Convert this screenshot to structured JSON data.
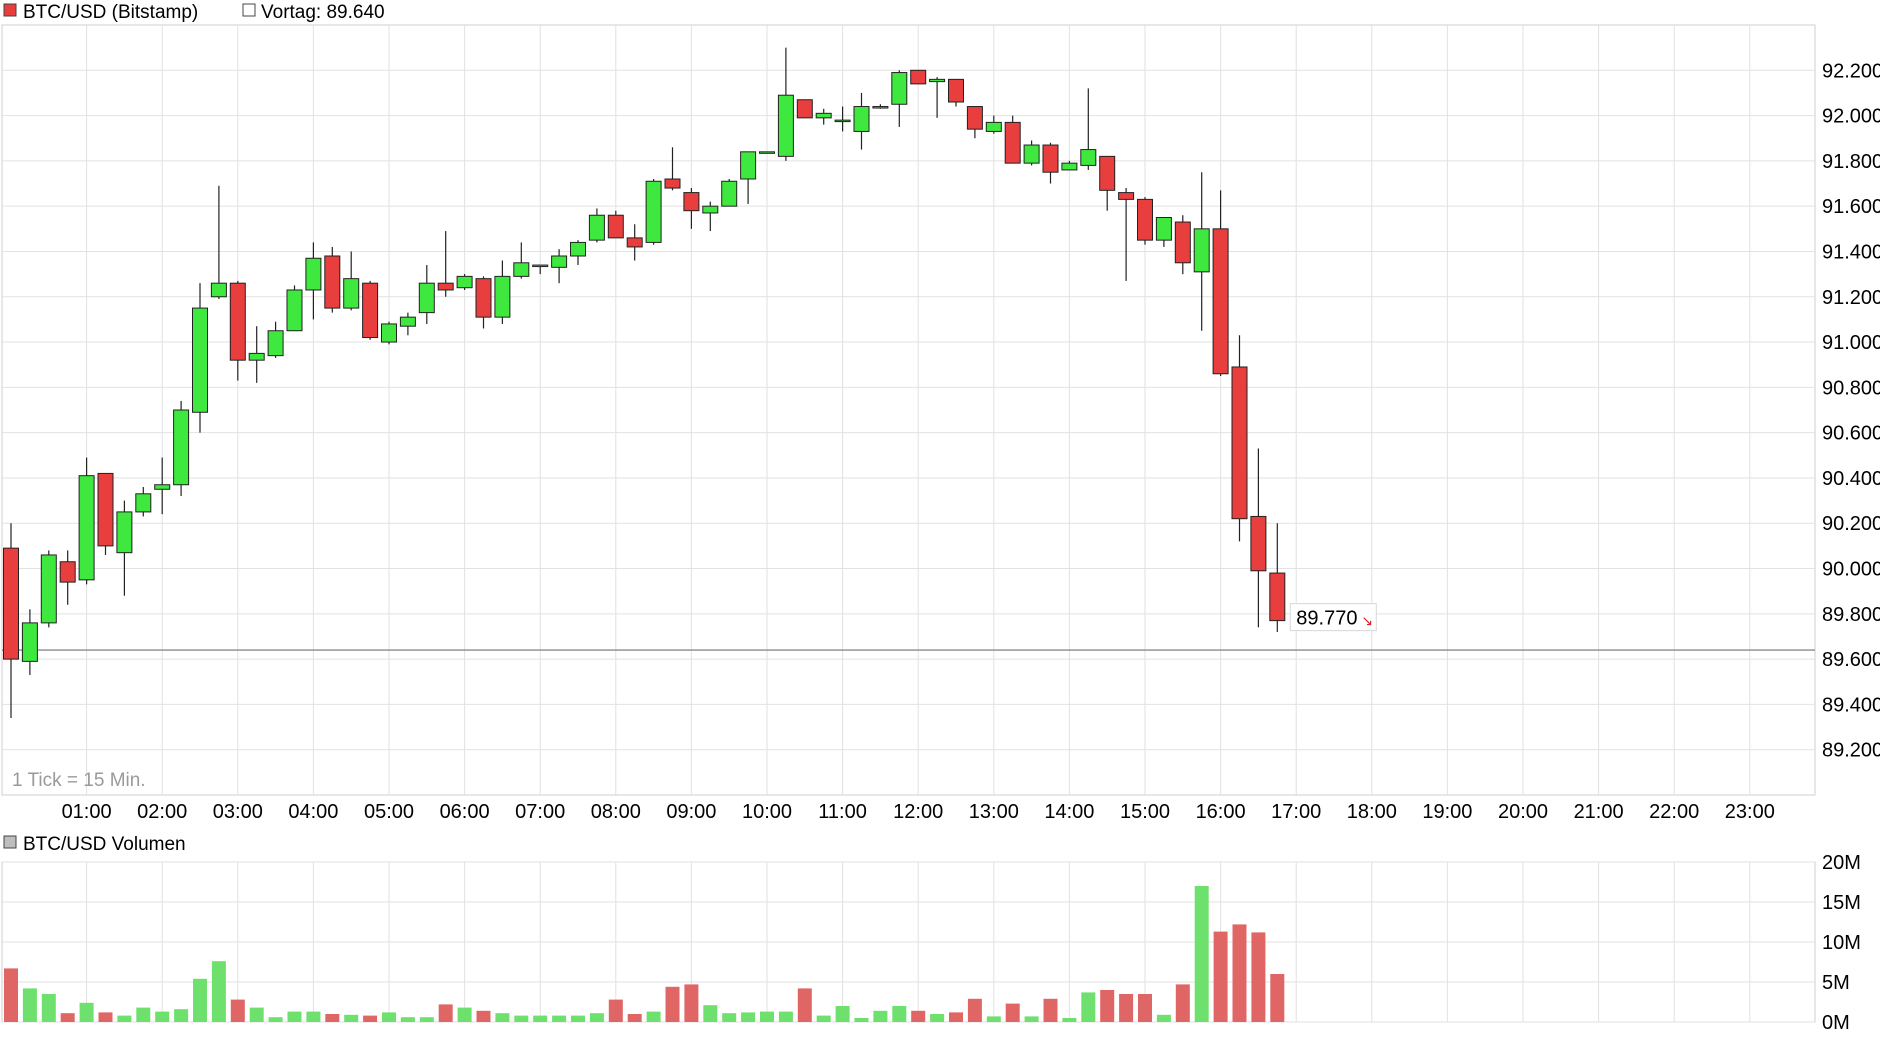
{
  "legend": {
    "instrument_label": "BTC/USD (Bitstamp)",
    "prev_close_label": "Vortag: 89.640",
    "volume_label": "BTC/USD Volumen"
  },
  "tick_note": "1 Tick = 15 Min.",
  "last_price_label": "89.770",
  "colors": {
    "up": "#3ee83e",
    "down": "#e83e3e",
    "vol_up": "#6ee06e",
    "vol_down": "#e06666",
    "grid": "#e2e2e2",
    "prev_close_line": "#8a8a8a"
  },
  "chart_data": [
    {
      "type": "candlestick",
      "title": "BTC/USD (Bitstamp)",
      "interval": "15 Min.",
      "prev_close": 89640,
      "last_price": 89770,
      "ylim": [
        89000,
        92400
      ],
      "y_ticks": [
        92200,
        92000,
        91800,
        91600,
        91400,
        91200,
        91000,
        90800,
        90600,
        90400,
        90200,
        90000,
        89800,
        89600,
        89400,
        89200
      ],
      "y_tick_labels": [
        "92.200",
        "92.000",
        "91.800",
        "91.600",
        "91.400",
        "91.200",
        "91.000",
        "90.800",
        "90.600",
        "90.400",
        "90.200",
        "90.000",
        "89.800",
        "89.600",
        "89.400",
        "89.200"
      ],
      "x_tick_labels": [
        "01:00",
        "02:00",
        "03:00",
        "04:00",
        "05:00",
        "06:00",
        "07:00",
        "08:00",
        "09:00",
        "10:00",
        "11:00",
        "12:00",
        "13:00",
        "14:00",
        "15:00",
        "16:00",
        "17:00",
        "18:00",
        "19:00",
        "20:00",
        "21:00",
        "22:00",
        "23:00"
      ],
      "grid": true,
      "candles": [
        {
          "time": "00:00",
          "open": 90090,
          "high": 90200,
          "low": 89340,
          "close": 89600
        },
        {
          "time": "00:15",
          "open": 89590,
          "high": 89820,
          "low": 89530,
          "close": 89760
        },
        {
          "time": "00:30",
          "open": 89760,
          "high": 90080,
          "low": 89740,
          "close": 90060
        },
        {
          "time": "00:45",
          "open": 90030,
          "high": 90080,
          "low": 89840,
          "close": 89940
        },
        {
          "time": "01:00",
          "open": 89950,
          "high": 90490,
          "low": 89930,
          "close": 90410
        },
        {
          "time": "01:15",
          "open": 90420,
          "high": 90420,
          "low": 90060,
          "close": 90100
        },
        {
          "time": "01:30",
          "open": 90070,
          "high": 90300,
          "low": 89880,
          "close": 90250
        },
        {
          "time": "01:45",
          "open": 90250,
          "high": 90360,
          "low": 90230,
          "close": 90330
        },
        {
          "time": "02:00",
          "open": 90350,
          "high": 90490,
          "low": 90240,
          "close": 90370
        },
        {
          "time": "02:15",
          "open": 90370,
          "high": 90740,
          "low": 90320,
          "close": 90700
        },
        {
          "time": "02:30",
          "open": 90690,
          "high": 91260,
          "low": 90600,
          "close": 91150
        },
        {
          "time": "02:45",
          "open": 91200,
          "high": 91690,
          "low": 91190,
          "close": 91260
        },
        {
          "time": "03:00",
          "open": 91260,
          "high": 91270,
          "low": 90830,
          "close": 90920
        },
        {
          "time": "03:15",
          "open": 90920,
          "high": 91070,
          "low": 90820,
          "close": 90950
        },
        {
          "time": "03:30",
          "open": 90940,
          "high": 91090,
          "low": 90930,
          "close": 91050
        },
        {
          "time": "03:45",
          "open": 91050,
          "high": 91250,
          "low": 91050,
          "close": 91230
        },
        {
          "time": "04:00",
          "open": 91230,
          "high": 91440,
          "low": 91100,
          "close": 91370
        },
        {
          "time": "04:15",
          "open": 91380,
          "high": 91420,
          "low": 91130,
          "close": 91150
        },
        {
          "time": "04:30",
          "open": 91150,
          "high": 91400,
          "low": 91140,
          "close": 91280
        },
        {
          "time": "04:45",
          "open": 91260,
          "high": 91270,
          "low": 91010,
          "close": 91020
        },
        {
          "time": "05:00",
          "open": 91000,
          "high": 91090,
          "low": 90990,
          "close": 91080
        },
        {
          "time": "05:15",
          "open": 91070,
          "high": 91130,
          "low": 91030,
          "close": 91110
        },
        {
          "time": "05:30",
          "open": 91130,
          "high": 91340,
          "low": 91080,
          "close": 91260
        },
        {
          "time": "05:45",
          "open": 91260,
          "high": 91490,
          "low": 91200,
          "close": 91230
        },
        {
          "time": "06:00",
          "open": 91240,
          "high": 91300,
          "low": 91230,
          "close": 91290
        },
        {
          "time": "06:15",
          "open": 91280,
          "high": 91290,
          "low": 91060,
          "close": 91110
        },
        {
          "time": "06:30",
          "open": 91110,
          "high": 91360,
          "low": 91080,
          "close": 91290
        },
        {
          "time": "06:45",
          "open": 91290,
          "high": 91440,
          "low": 91280,
          "close": 91350
        },
        {
          "time": "07:00",
          "open": 91340,
          "high": 91340,
          "low": 91300,
          "close": 91340
        },
        {
          "time": "07:15",
          "open": 91330,
          "high": 91410,
          "low": 91260,
          "close": 91380
        },
        {
          "time": "07:30",
          "open": 91380,
          "high": 91450,
          "low": 91340,
          "close": 91440
        },
        {
          "time": "07:45",
          "open": 91450,
          "high": 91590,
          "low": 91440,
          "close": 91560
        },
        {
          "time": "08:00",
          "open": 91560,
          "high": 91580,
          "low": 91460,
          "close": 91460
        },
        {
          "time": "08:15",
          "open": 91460,
          "high": 91520,
          "low": 91360,
          "close": 91420
        },
        {
          "time": "08:30",
          "open": 91440,
          "high": 91720,
          "low": 91430,
          "close": 91710
        },
        {
          "time": "08:45",
          "open": 91720,
          "high": 91860,
          "low": 91670,
          "close": 91680
        },
        {
          "time": "09:00",
          "open": 91660,
          "high": 91680,
          "low": 91500,
          "close": 91580
        },
        {
          "time": "09:15",
          "open": 91570,
          "high": 91620,
          "low": 91490,
          "close": 91600
        },
        {
          "time": "09:30",
          "open": 91600,
          "high": 91720,
          "low": 91600,
          "close": 91710
        },
        {
          "time": "09:45",
          "open": 91720,
          "high": 91830,
          "low": 91610,
          "close": 91840
        },
        {
          "time": "10:00",
          "open": 91840,
          "high": 91840,
          "low": 91840,
          "close": 91840
        },
        {
          "time": "10:15",
          "open": 91820,
          "high": 92300,
          "low": 91800,
          "close": 92090
        },
        {
          "time": "10:30",
          "open": 92070,
          "high": 92070,
          "low": 91990,
          "close": 91990
        },
        {
          "time": "10:45",
          "open": 91990,
          "high": 92030,
          "low": 91960,
          "close": 92010
        },
        {
          "time": "11:00",
          "open": 91980,
          "high": 92040,
          "low": 91930,
          "close": 91980
        },
        {
          "time": "11:15",
          "open": 91930,
          "high": 92100,
          "low": 91850,
          "close": 92040
        },
        {
          "time": "11:30",
          "open": 92040,
          "high": 92050,
          "low": 92030,
          "close": 92040
        },
        {
          "time": "11:45",
          "open": 92050,
          "high": 92200,
          "low": 91950,
          "close": 92190
        },
        {
          "time": "12:00",
          "open": 92200,
          "high": 92200,
          "low": 92140,
          "close": 92140
        },
        {
          "time": "12:15",
          "open": 92150,
          "high": 92170,
          "low": 91990,
          "close": 92160
        },
        {
          "time": "12:30",
          "open": 92160,
          "high": 92160,
          "low": 92040,
          "close": 92060
        },
        {
          "time": "12:45",
          "open": 92040,
          "high": 92040,
          "low": 91900,
          "close": 91940
        },
        {
          "time": "13:00",
          "open": 91930,
          "high": 92000,
          "low": 91920,
          "close": 91970
        },
        {
          "time": "13:15",
          "open": 91970,
          "high": 92000,
          "low": 91790,
          "close": 91790
        },
        {
          "time": "13:30",
          "open": 91790,
          "high": 91890,
          "low": 91780,
          "close": 91870
        },
        {
          "time": "13:45",
          "open": 91870,
          "high": 91880,
          "low": 91700,
          "close": 91750
        },
        {
          "time": "14:00",
          "open": 91760,
          "high": 91800,
          "low": 91760,
          "close": 91790
        },
        {
          "time": "14:15",
          "open": 91780,
          "high": 92120,
          "low": 91760,
          "close": 91850
        },
        {
          "time": "14:30",
          "open": 91820,
          "high": 91820,
          "low": 91580,
          "close": 91670
        },
        {
          "time": "14:45",
          "open": 91660,
          "high": 91680,
          "low": 91270,
          "close": 91630
        },
        {
          "time": "15:00",
          "open": 91630,
          "high": 91640,
          "low": 91430,
          "close": 91450
        },
        {
          "time": "15:15",
          "open": 91450,
          "high": 91550,
          "low": 91420,
          "close": 91550
        },
        {
          "time": "15:30",
          "open": 91530,
          "high": 91560,
          "low": 91300,
          "close": 91350
        },
        {
          "time": "15:45",
          "open": 91310,
          "high": 91750,
          "low": 91050,
          "close": 91500
        },
        {
          "time": "16:00",
          "open": 91500,
          "high": 91670,
          "low": 90850,
          "close": 90860
        },
        {
          "time": "16:15",
          "open": 90890,
          "high": 91030,
          "low": 90120,
          "close": 90220
        },
        {
          "time": "16:30",
          "open": 90230,
          "high": 90530,
          "low": 89740,
          "close": 89990
        },
        {
          "time": "16:45",
          "open": 89980,
          "high": 90200,
          "low": 89720,
          "close": 89770
        }
      ]
    },
    {
      "type": "bar",
      "title": "BTC/USD Volumen",
      "ylim": [
        0,
        20000000
      ],
      "y_ticks": [
        20000000,
        15000000,
        10000000,
        5000000,
        0
      ],
      "y_tick_labels": [
        "20M",
        "15M",
        "10M",
        "5M",
        "0M"
      ],
      "values": [
        6700000,
        4200000,
        3500000,
        1100000,
        2400000,
        1200000,
        800000,
        1800000,
        1300000,
        1600000,
        5400000,
        7600000,
        2800000,
        1800000,
        600000,
        1300000,
        1300000,
        1000000,
        900000,
        800000,
        1200000,
        600000,
        600000,
        2200000,
        1800000,
        1400000,
        1100000,
        800000,
        800000,
        800000,
        800000,
        1100000,
        2800000,
        1000000,
        1300000,
        4400000,
        4700000,
        2100000,
        1100000,
        1200000,
        1300000,
        1300000,
        4200000,
        800000,
        2000000,
        500000,
        1400000,
        2000000,
        1400000,
        1000000,
        1200000,
        2900000,
        700000,
        2300000,
        700000,
        2900000,
        500000,
        3700000,
        4000000,
        3500000,
        3500000,
        900000,
        4700000,
        17000000,
        11300000,
        12200000,
        11200000,
        6000000
      ]
    }
  ]
}
